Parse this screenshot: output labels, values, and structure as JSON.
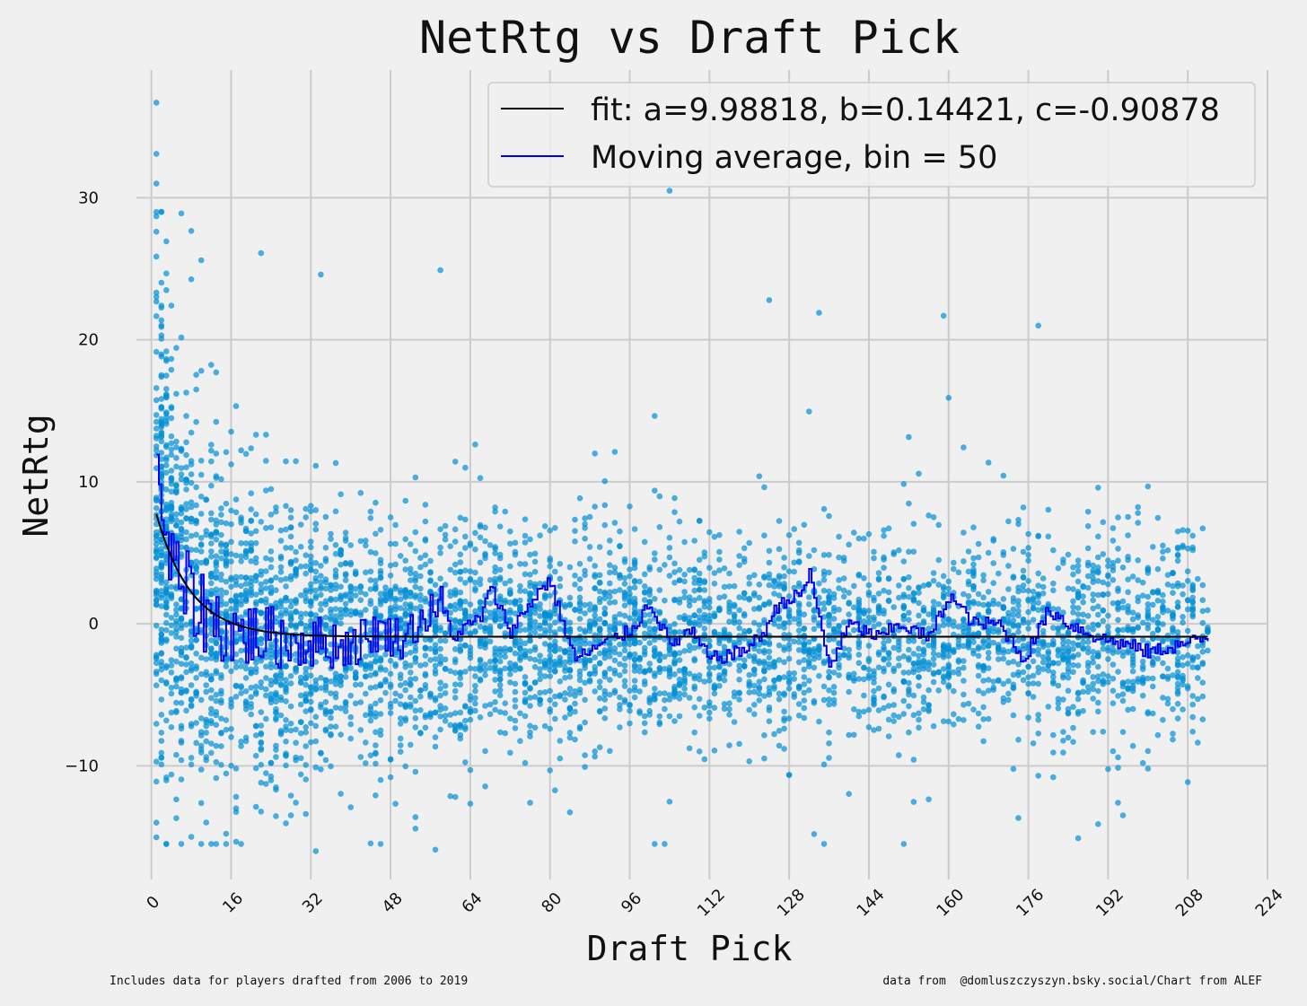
{
  "chart_data": {
    "type": "scatter",
    "title": "NetRtg vs Draft Pick",
    "xlabel": "Draft Pick",
    "ylabel": "NetRtg",
    "xlim": [
      -3,
      224
    ],
    "ylim": [
      -18,
      39
    ],
    "x_ticks": [
      0,
      16,
      32,
      48,
      64,
      80,
      96,
      112,
      128,
      144,
      160,
      176,
      192,
      208,
      224
    ],
    "y_ticks": [
      -10,
      0,
      10,
      20,
      30
    ],
    "y_tick_labels": [
      "−10",
      "0",
      "10",
      "20",
      "30"
    ],
    "grid": true,
    "legend": {
      "location": "top-right",
      "entries": [
        {
          "label": "fit: a=9.98818, b=0.14421, c=-0.90878",
          "color": "#000000"
        },
        {
          "label": "Moving average, bin = 50",
          "color": "#0000ee"
        }
      ]
    },
    "fit": {
      "a": 9.98818,
      "b": 0.14421,
      "c": -0.90878,
      "x_range": [
        1,
        212
      ]
    },
    "scatter_summary": {
      "x_range": [
        1,
        212
      ],
      "approx_points": 5000,
      "color": "#008fd5"
    },
    "notable_points": [
      {
        "x": 1,
        "y": 36.7
      },
      {
        "x": 1,
        "y": 33.1
      },
      {
        "x": 1,
        "y": 31.0
      },
      {
        "x": 1,
        "y": 28.7
      },
      {
        "x": 6,
        "y": 28.9
      },
      {
        "x": 10,
        "y": 25.6
      },
      {
        "x": 22,
        "y": 26.1
      },
      {
        "x": 58,
        "y": 24.9
      },
      {
        "x": 104,
        "y": 30.5
      },
      {
        "x": 34,
        "y": 24.6
      },
      {
        "x": 124,
        "y": 22.8
      },
      {
        "x": 134,
        "y": 21.9
      },
      {
        "x": 159,
        "y": 21.7
      },
      {
        "x": 178,
        "y": 21.0
      },
      {
        "x": 1,
        "y": -14.0
      },
      {
        "x": 8,
        "y": -15.0
      },
      {
        "x": 15,
        "y": -15.5
      },
      {
        "x": 33,
        "y": -16.0
      },
      {
        "x": 57,
        "y": -15.9
      },
      {
        "x": 133,
        "y": -14.8
      },
      {
        "x": 190,
        "y": -14.1
      },
      {
        "x": 194,
        "y": -12.6
      },
      {
        "x": 186,
        "y": -15.1
      }
    ],
    "moving_average_anchors": {
      "x": [
        1,
        2,
        3,
        5,
        7,
        10,
        15,
        20,
        25,
        30,
        40,
        45,
        50,
        58,
        60,
        66,
        68,
        72,
        78,
        80,
        82,
        85,
        90,
        96,
        100,
        104,
        108,
        112,
        118,
        122,
        126,
        130,
        132,
        136,
        140,
        146,
        150,
        156,
        160,
        165,
        170,
        175,
        180,
        184,
        190,
        196,
        200,
        206,
        212
      ],
      "y": [
        14,
        8,
        5,
        3,
        2,
        1,
        -0.5,
        -0.8,
        -1,
        -1.2,
        -1.5,
        -0.5,
        -1,
        1.5,
        -1,
        0.5,
        2.5,
        -0.5,
        2.5,
        3,
        0.5,
        -2.5,
        -1.5,
        -0.5,
        1.5,
        -1.5,
        -0.5,
        -2.5,
        -2,
        -1,
        1.5,
        2,
        3.5,
        -3,
        0,
        -1,
        0,
        -1,
        2,
        0,
        0,
        -2.5,
        1,
        0,
        -1,
        -1.5,
        -2,
        -1.5,
        -1
      ]
    }
  },
  "footer": {
    "left": "Includes data for players drafted from 2006 to 2019",
    "right": "data from  @domluszczyszyn.bsky.social/Chart from ALEF"
  }
}
